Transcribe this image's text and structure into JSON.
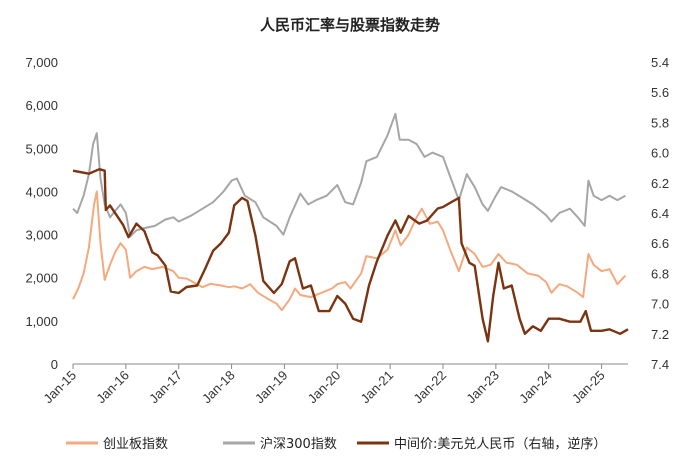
{
  "chart_data": {
    "type": "line",
    "title": "人民币汇率与股票指数走势",
    "x_ticks": [
      "Jan-15",
      "Jan-16",
      "Jan-17",
      "Jan-18",
      "Jan-19",
      "Jan-20",
      "Jan-21",
      "Jan-22",
      "Jan-23",
      "Jan-24",
      "Jan-25"
    ],
    "left_axis": {
      "min": 0,
      "max": 7000,
      "ticks": [
        "0",
        "1,000",
        "2,000",
        "3,000",
        "4,000",
        "5,000",
        "6,000",
        "7,000"
      ]
    },
    "right_axis": {
      "min": 5.4,
      "max": 7.4,
      "reversed": true,
      "ticks": [
        "5.4",
        "5.6",
        "5.8",
        "6.0",
        "6.2",
        "6.4",
        "6.6",
        "6.8",
        "7.0",
        "7.2",
        "7.4"
      ]
    },
    "x_range": [
      2015.0,
      2025.5
    ],
    "grid": false,
    "legend_position": "bottom",
    "series": [
      {
        "name": "创业板指数",
        "axis": "left",
        "color": "#F4A97E",
        "points": [
          [
            2015.0,
            1500
          ],
          [
            2015.1,
            1750
          ],
          [
            2015.2,
            2100
          ],
          [
            2015.3,
            2700
          ],
          [
            2015.4,
            3700
          ],
          [
            2015.45,
            4000
          ],
          [
            2015.52,
            2800
          ],
          [
            2015.6,
            1950
          ],
          [
            2015.7,
            2300
          ],
          [
            2015.8,
            2600
          ],
          [
            2015.9,
            2800
          ],
          [
            2016.0,
            2650
          ],
          [
            2016.08,
            2000
          ],
          [
            2016.2,
            2150
          ],
          [
            2016.35,
            2250
          ],
          [
            2016.5,
            2200
          ],
          [
            2016.7,
            2250
          ],
          [
            2016.9,
            2150
          ],
          [
            2017.0,
            2000
          ],
          [
            2017.15,
            1980
          ],
          [
            2017.3,
            1880
          ],
          [
            2017.45,
            1780
          ],
          [
            2017.6,
            1860
          ],
          [
            2017.8,
            1820
          ],
          [
            2017.95,
            1780
          ],
          [
            2018.05,
            1800
          ],
          [
            2018.2,
            1750
          ],
          [
            2018.35,
            1850
          ],
          [
            2018.5,
            1650
          ],
          [
            2018.7,
            1500
          ],
          [
            2018.85,
            1400
          ],
          [
            2018.95,
            1250
          ],
          [
            2019.1,
            1500
          ],
          [
            2019.2,
            1750
          ],
          [
            2019.3,
            1600
          ],
          [
            2019.5,
            1550
          ],
          [
            2019.7,
            1650
          ],
          [
            2019.9,
            1750
          ],
          [
            2020.0,
            1850
          ],
          [
            2020.15,
            1900
          ],
          [
            2020.25,
            1750
          ],
          [
            2020.45,
            2100
          ],
          [
            2020.55,
            2500
          ],
          [
            2020.75,
            2450
          ],
          [
            2020.95,
            2650
          ],
          [
            2021.1,
            3100
          ],
          [
            2021.2,
            2750
          ],
          [
            2021.35,
            3000
          ],
          [
            2021.5,
            3400
          ],
          [
            2021.6,
            3600
          ],
          [
            2021.75,
            3250
          ],
          [
            2021.9,
            3300
          ],
          [
            2022.0,
            3100
          ],
          [
            2022.15,
            2600
          ],
          [
            2022.3,
            2150
          ],
          [
            2022.45,
            2700
          ],
          [
            2022.6,
            2550
          ],
          [
            2022.75,
            2250
          ],
          [
            2022.9,
            2300
          ],
          [
            2023.05,
            2550
          ],
          [
            2023.2,
            2350
          ],
          [
            2023.4,
            2300
          ],
          [
            2023.6,
            2100
          ],
          [
            2023.8,
            2050
          ],
          [
            2023.95,
            1900
          ],
          [
            2024.05,
            1650
          ],
          [
            2024.2,
            1850
          ],
          [
            2024.35,
            1800
          ],
          [
            2024.55,
            1650
          ],
          [
            2024.65,
            1550
          ],
          [
            2024.75,
            2550
          ],
          [
            2024.85,
            2300
          ],
          [
            2025.0,
            2150
          ],
          [
            2025.15,
            2200
          ],
          [
            2025.3,
            1850
          ],
          [
            2025.45,
            2050
          ]
        ]
      },
      {
        "name": "沪深300指数",
        "axis": "left",
        "color": "#A6A6A6",
        "points": [
          [
            2015.0,
            3600
          ],
          [
            2015.08,
            3500
          ],
          [
            2015.2,
            3900
          ],
          [
            2015.3,
            4400
          ],
          [
            2015.38,
            5100
          ],
          [
            2015.45,
            5350
          ],
          [
            2015.52,
            4300
          ],
          [
            2015.6,
            3700
          ],
          [
            2015.7,
            3400
          ],
          [
            2015.8,
            3550
          ],
          [
            2015.9,
            3700
          ],
          [
            2016.0,
            3500
          ],
          [
            2016.08,
            2950
          ],
          [
            2016.2,
            3100
          ],
          [
            2016.35,
            3150
          ],
          [
            2016.55,
            3200
          ],
          [
            2016.75,
            3350
          ],
          [
            2016.9,
            3400
          ],
          [
            2017.0,
            3300
          ],
          [
            2017.25,
            3450
          ],
          [
            2017.45,
            3600
          ],
          [
            2017.65,
            3750
          ],
          [
            2017.85,
            4000
          ],
          [
            2018.0,
            4250
          ],
          [
            2018.1,
            4300
          ],
          [
            2018.25,
            3900
          ],
          [
            2018.45,
            3750
          ],
          [
            2018.6,
            3400
          ],
          [
            2018.85,
            3200
          ],
          [
            2018.98,
            3000
          ],
          [
            2019.1,
            3400
          ],
          [
            2019.3,
            3950
          ],
          [
            2019.45,
            3700
          ],
          [
            2019.6,
            3800
          ],
          [
            2019.8,
            3900
          ],
          [
            2020.0,
            4150
          ],
          [
            2020.15,
            3750
          ],
          [
            2020.3,
            3700
          ],
          [
            2020.45,
            4200
          ],
          [
            2020.55,
            4700
          ],
          [
            2020.75,
            4800
          ],
          [
            2020.95,
            5300
          ],
          [
            2021.1,
            5800
          ],
          [
            2021.18,
            5200
          ],
          [
            2021.35,
            5200
          ],
          [
            2021.5,
            5100
          ],
          [
            2021.65,
            4800
          ],
          [
            2021.8,
            4900
          ],
          [
            2022.0,
            4800
          ],
          [
            2022.15,
            4300
          ],
          [
            2022.3,
            3800
          ],
          [
            2022.45,
            4400
          ],
          [
            2022.6,
            4100
          ],
          [
            2022.75,
            3700
          ],
          [
            2022.85,
            3550
          ],
          [
            2023.0,
            3900
          ],
          [
            2023.1,
            4100
          ],
          [
            2023.3,
            4000
          ],
          [
            2023.5,
            3850
          ],
          [
            2023.7,
            3700
          ],
          [
            2023.95,
            3450
          ],
          [
            2024.05,
            3300
          ],
          [
            2024.2,
            3500
          ],
          [
            2024.4,
            3600
          ],
          [
            2024.55,
            3400
          ],
          [
            2024.68,
            3200
          ],
          [
            2024.75,
            4250
          ],
          [
            2024.85,
            3900
          ],
          [
            2025.0,
            3800
          ],
          [
            2025.15,
            3900
          ],
          [
            2025.3,
            3800
          ],
          [
            2025.45,
            3900
          ]
        ]
      },
      {
        "name": "中间价:美元兑人民币（右轴，逆序）",
        "axis": "right",
        "color": "#7B3411",
        "points": [
          [
            2015.0,
            6.12
          ],
          [
            2015.3,
            6.14
          ],
          [
            2015.5,
            6.11
          ],
          [
            2015.6,
            6.12
          ],
          [
            2015.62,
            6.38
          ],
          [
            2015.7,
            6.35
          ],
          [
            2015.95,
            6.48
          ],
          [
            2016.05,
            6.56
          ],
          [
            2016.2,
            6.47
          ],
          [
            2016.35,
            6.52
          ],
          [
            2016.5,
            6.66
          ],
          [
            2016.6,
            6.68
          ],
          [
            2016.75,
            6.75
          ],
          [
            2016.85,
            6.92
          ],
          [
            2017.0,
            6.93
          ],
          [
            2017.15,
            6.89
          ],
          [
            2017.35,
            6.88
          ],
          [
            2017.5,
            6.77
          ],
          [
            2017.65,
            6.65
          ],
          [
            2017.8,
            6.6
          ],
          [
            2017.95,
            6.53
          ],
          [
            2018.05,
            6.35
          ],
          [
            2018.2,
            6.3
          ],
          [
            2018.3,
            6.32
          ],
          [
            2018.45,
            6.55
          ],
          [
            2018.6,
            6.85
          ],
          [
            2018.8,
            6.93
          ],
          [
            2018.95,
            6.87
          ],
          [
            2019.1,
            6.72
          ],
          [
            2019.2,
            6.7
          ],
          [
            2019.35,
            6.9
          ],
          [
            2019.5,
            6.88
          ],
          [
            2019.65,
            7.05
          ],
          [
            2019.85,
            7.05
          ],
          [
            2020.0,
            6.95
          ],
          [
            2020.15,
            7.0
          ],
          [
            2020.3,
            7.1
          ],
          [
            2020.45,
            7.12
          ],
          [
            2020.6,
            6.88
          ],
          [
            2020.75,
            6.72
          ],
          [
            2020.95,
            6.55
          ],
          [
            2021.1,
            6.45
          ],
          [
            2021.2,
            6.53
          ],
          [
            2021.35,
            6.42
          ],
          [
            2021.55,
            6.47
          ],
          [
            2021.7,
            6.45
          ],
          [
            2021.9,
            6.37
          ],
          [
            2022.0,
            6.36
          ],
          [
            2022.15,
            6.33
          ],
          [
            2022.3,
            6.3
          ],
          [
            2022.35,
            6.6
          ],
          [
            2022.5,
            6.73
          ],
          [
            2022.6,
            6.75
          ],
          [
            2022.75,
            7.1
          ],
          [
            2022.85,
            7.25
          ],
          [
            2022.95,
            6.95
          ],
          [
            2023.05,
            6.73
          ],
          [
            2023.15,
            6.9
          ],
          [
            2023.3,
            6.88
          ],
          [
            2023.45,
            7.1
          ],
          [
            2023.55,
            7.2
          ],
          [
            2023.7,
            7.15
          ],
          [
            2023.85,
            7.18
          ],
          [
            2024.0,
            7.1
          ],
          [
            2024.2,
            7.1
          ],
          [
            2024.4,
            7.12
          ],
          [
            2024.6,
            7.12
          ],
          [
            2024.7,
            7.05
          ],
          [
            2024.8,
            7.18
          ],
          [
            2025.0,
            7.18
          ],
          [
            2025.15,
            7.17
          ],
          [
            2025.35,
            7.2
          ],
          [
            2025.5,
            7.17
          ]
        ]
      }
    ]
  }
}
